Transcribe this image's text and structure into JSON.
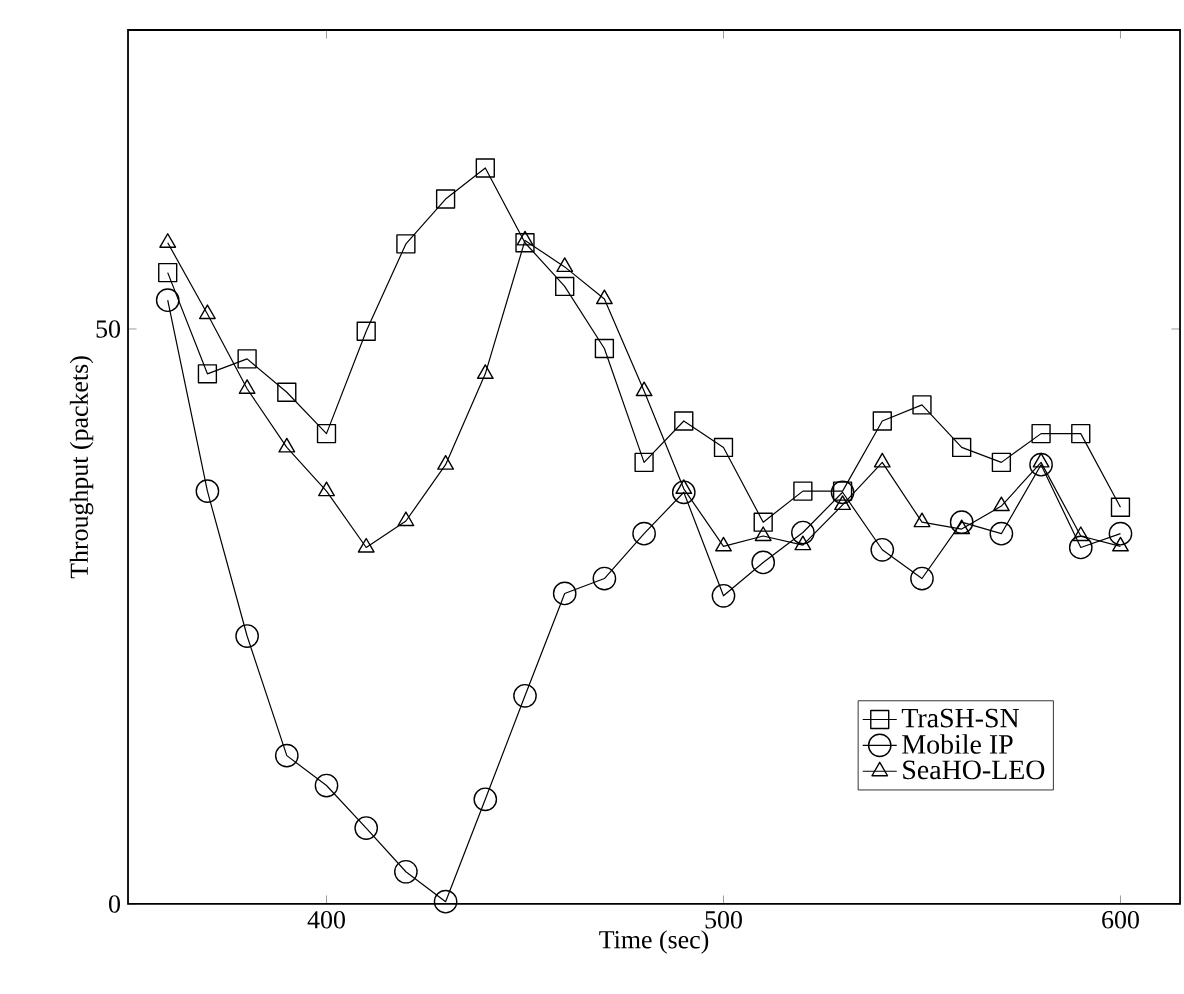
{
  "chart_data": {
    "type": "line",
    "xlabel": "Time (sec)",
    "ylabel": "Throughput (packets)",
    "x": [
      360,
      370,
      380,
      390,
      400,
      410,
      420,
      430,
      440,
      450,
      460,
      470,
      480,
      490,
      500,
      510,
      520,
      530,
      540,
      550,
      560,
      570,
      580,
      590,
      600
    ],
    "xlim": [
      350,
      615
    ],
    "ylim": [
      0,
      76
    ],
    "xticks": [
      400,
      500,
      600
    ],
    "yticks": [
      0,
      50
    ],
    "legend": "bottom right",
    "grid": false,
    "line_style": "solid",
    "series": [
      {
        "name": "TraSH-SN",
        "color": "#000000",
        "marker": "square",
        "values": [
          54.9,
          46.1,
          47.4,
          44.5,
          40.9,
          49.8,
          57.4,
          61.3,
          64.0,
          57.5,
          53.7,
          48.3,
          38.4,
          42.0,
          39.7,
          33.2,
          35.9,
          35.9,
          42.0,
          43.4,
          39.7,
          38.4,
          40.9,
          40.9,
          34.5
        ]
      },
      {
        "name": "Mobile IP",
        "color": "#000000",
        "marker": "circle",
        "values": [
          52.5,
          35.9,
          23.3,
          12.9,
          10.3,
          6.6,
          2.8,
          0.2,
          9.1,
          18.1,
          27.0,
          28.3,
          32.2,
          35.8,
          26.8,
          29.7,
          32.3,
          35.8,
          30.8,
          28.3,
          33.2,
          32.2,
          38.2,
          31.0,
          32.2
        ]
      },
      {
        "name": "SeaHO-LEO",
        "color": "#000000",
        "marker": "triangle",
        "values": [
          57.5,
          51.3,
          44.8,
          39.7,
          35.9,
          31.0,
          33.3,
          38.2,
          46.1,
          57.7,
          55.4,
          52.6,
          44.6,
          36.1,
          31.1,
          32.0,
          31.2,
          34.7,
          38.4,
          33.2,
          32.6,
          34.6,
          38.4,
          32.0,
          31.1
        ]
      }
    ]
  }
}
